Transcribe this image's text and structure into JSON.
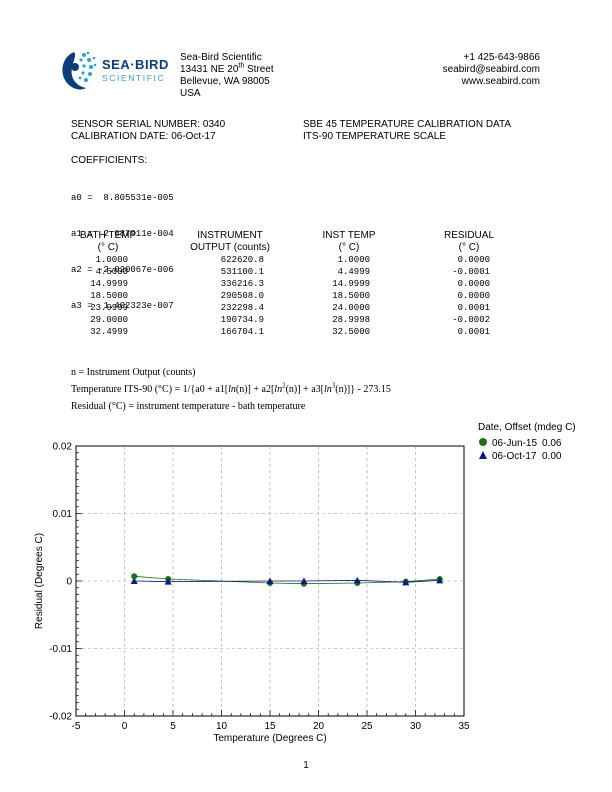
{
  "company": {
    "logo_top": "SEA·BIRD",
    "logo_bottom": "SCIENTIFIC",
    "name": "Sea-Bird Scientific",
    "street_pre": "13431 NE 20",
    "street_sup": "th",
    "street_post": " Street",
    "city": "Bellevue, WA  98005",
    "country": "USA",
    "phone": "+1 425-643-9866",
    "email": "seabird@seabird.com",
    "web": "www.seabird.com"
  },
  "info": {
    "serial": "SENSOR SERIAL NUMBER: 0340",
    "cal_date": "CALIBRATION DATE: 06-Oct-17",
    "title": "SBE 45 TEMPERATURE CALIBRATION DATA",
    "scale": "ITS-90 TEMPERATURE SCALE"
  },
  "coefficients": {
    "heading": "COEFFICIENTS:",
    "lines": [
      "a0 =  8.805531e-005",
      "a1 =  2.687911e-004",
      "a2 = -2.020067e-006",
      "a3 =  1.402323e-007"
    ]
  },
  "table": {
    "headers": [
      {
        "l1": "BATH TEMP",
        "l2": "(° C)"
      },
      {
        "l1": "INSTRUMENT",
        "l2": "OUTPUT (counts)"
      },
      {
        "l1": "INST TEMP",
        "l2": "(° C)"
      },
      {
        "l1": "RESIDUAL",
        "l2": "(° C)"
      }
    ],
    "rows": [
      [
        "1.0000",
        "622620.8",
        "1.0000",
        "0.0000"
      ],
      [
        "4.5000",
        "531100.1",
        "4.4999",
        "-0.0001"
      ],
      [
        "14.9999",
        "336216.3",
        "14.9999",
        "0.0000"
      ],
      [
        "18.5000",
        "290508.0",
        "18.5000",
        "0.0000"
      ],
      [
        "23.9999",
        "232298.4",
        "24.0000",
        "0.0001"
      ],
      [
        "29.0000",
        "190734.9",
        "28.9998",
        "-0.0002"
      ],
      [
        "32.4999",
        "166704.1",
        "32.5000",
        "0.0001"
      ]
    ]
  },
  "formulas": {
    "n_def": "n = Instrument Output (counts)",
    "temp_a": "Temperature ITS-90 (°C) = 1/{a0 + a1[",
    "ln1": "ln",
    "temp_b": "(n)] + a2[",
    "ln2": "ln",
    "sup2": "2",
    "temp_c": "(n)] + a3[",
    "ln3": "ln",
    "sup3": "3",
    "temp_d": "(n)]} - 273.15",
    "residual": "Residual (°C) = instrument temperature - bath temperature"
  },
  "legend": {
    "title": "Date, Offset (mdeg C)",
    "entries": [
      {
        "date": "06-Jun-15",
        "offset": "0.06",
        "color": "#1a6e1a",
        "marker": "circle"
      },
      {
        "date": "06-Oct-17",
        "offset": "0.00",
        "color": "#0a1a7a",
        "marker": "triangle"
      }
    ]
  },
  "chart_data": {
    "type": "line",
    "xlabel": "Temperature (Degrees C)",
    "ylabel": "Residual (Degrees C)",
    "xlim": [
      -5,
      35
    ],
    "ylim": [
      -0.02,
      0.02
    ],
    "xticks": [
      -5,
      0,
      5,
      10,
      15,
      20,
      25,
      30,
      35
    ],
    "yticks": [
      -0.02,
      -0.01,
      0,
      0.01,
      0.02
    ],
    "ytick_labels": [
      "-0.02",
      "-0.01",
      "0",
      "0.01",
      "0.02"
    ],
    "grid": true,
    "series": [
      {
        "name": "06-Jun-15",
        "color": "#1a6e1a",
        "marker": "circle",
        "x": [
          1.0,
          4.5,
          15.0,
          18.5,
          24.0,
          29.0,
          32.5
        ],
        "y": [
          0.0007,
          0.0003,
          -0.0003,
          -0.0004,
          -0.0003,
          -0.0001,
          0.0003
        ]
      },
      {
        "name": "06-Oct-17",
        "color": "#0a1a7a",
        "marker": "triangle",
        "x": [
          1.0,
          4.5,
          15.0,
          18.5,
          24.0,
          29.0,
          32.5
        ],
        "y": [
          0.0,
          -0.0001,
          0.0,
          0.0,
          0.0001,
          -0.0002,
          0.0001
        ]
      }
    ]
  },
  "page_number": "1"
}
